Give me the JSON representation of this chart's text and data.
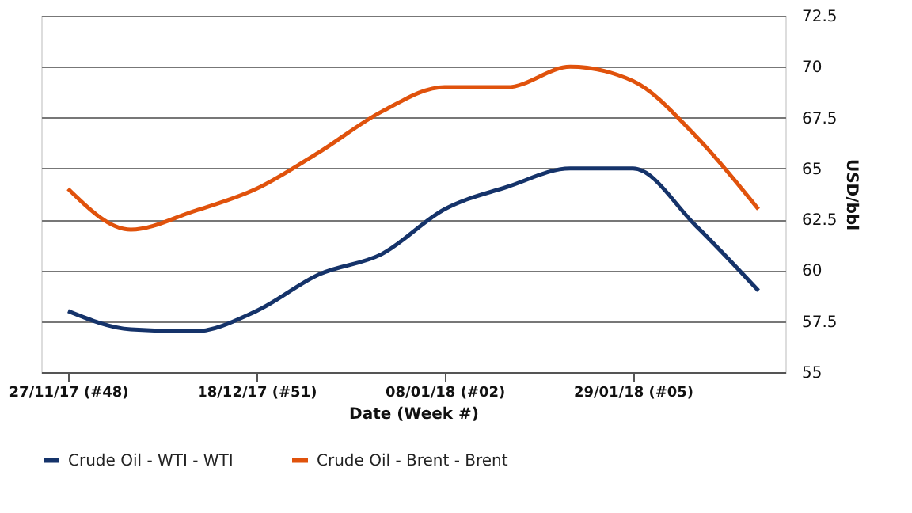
{
  "chart_data": {
    "type": "line",
    "xlabel": "Date (Week #)",
    "ylabel": "USD/bbl",
    "x": [
      "2017-11-27",
      "2017-12-04",
      "2017-12-11",
      "2017-12-18",
      "2017-12-25",
      "2018-01-01",
      "2018-01-08",
      "2018-01-15",
      "2018-01-22",
      "2018-01-29",
      "2018-02-05",
      "2018-02-12"
    ],
    "series": [
      {
        "name": "Crude Oil - WTI - WTI",
        "color": "#15336a",
        "values": [
          58,
          57.1,
          57,
          58,
          59.8,
          60.8,
          63,
          64.1,
          65,
          65,
          62.2,
          59
        ]
      },
      {
        "name": "Crude Oil - Brent - Brent",
        "color": "#e0520c",
        "values": [
          64,
          62,
          62.9,
          64,
          65.8,
          67.8,
          69,
          69,
          70,
          69.3,
          66.6,
          63
        ]
      }
    ],
    "xlim": [
      "2017-11-24",
      "2018-02-15"
    ],
    "xticks": [
      {
        "value": "2017-11-27",
        "label": "27/11/17 (#48)"
      },
      {
        "value": "2017-12-18",
        "label": "18/12/17 (#51)"
      },
      {
        "value": "2018-01-08",
        "label": "08/01/18 (#02)"
      },
      {
        "value": "2018-01-29",
        "label": "29/01/18 (#05)"
      }
    ],
    "ylim": [
      55,
      72.5
    ],
    "yticks": [
      55,
      57.5,
      60,
      62.5,
      65,
      67.5,
      70,
      72.5
    ],
    "grid": "y",
    "legend": "bottom",
    "marker": "none",
    "line_style": "solid"
  }
}
